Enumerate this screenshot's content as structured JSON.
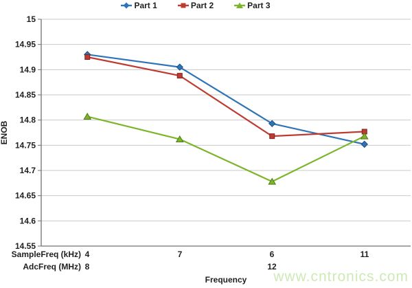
{
  "watermark": {
    "text": "www.cntronics.com",
    "color": "#CFE9B6"
  },
  "chart_data": {
    "type": "line",
    "title": "",
    "xlabel": "Frequency",
    "ylabel": "ENOB",
    "ylim": [
      14.55,
      15
    ],
    "ytick_step": 0.05,
    "yticks": [
      "15",
      "14.95",
      "14.9",
      "14.85",
      "14.8",
      "14.75",
      "14.7",
      "14.65",
      "14.6",
      "14.55"
    ],
    "grid": true,
    "legend_position": "top-center",
    "categories": [
      "4",
      "7",
      "6",
      "11"
    ],
    "x_rows": [
      {
        "label": "SampleFreq (kHz)",
        "values": [
          "4",
          "7",
          "6",
          "11"
        ]
      },
      {
        "label": "AdcFreq (MHz)",
        "values": [
          "8",
          "",
          "12",
          ""
        ]
      }
    ],
    "colors": {
      "gridline": "#C9C9C9",
      "axis": "#707070",
      "text": "#1F1F1F"
    },
    "series": [
      {
        "name": "Part 1",
        "marker": "diamond",
        "color": "#2E74B6",
        "outline": "#1C4E7E",
        "values": [
          14.93,
          14.905,
          14.793,
          14.752
        ]
      },
      {
        "name": "Part 2",
        "marker": "square",
        "color": "#BE3B31",
        "outline": "#7E231D",
        "values": [
          14.925,
          14.888,
          14.768,
          14.777
        ]
      },
      {
        "name": "Part 3",
        "marker": "triangle",
        "color": "#7CB52A",
        "outline": "#4F7A16",
        "values": [
          14.807,
          14.762,
          14.678,
          14.768
        ]
      }
    ]
  }
}
